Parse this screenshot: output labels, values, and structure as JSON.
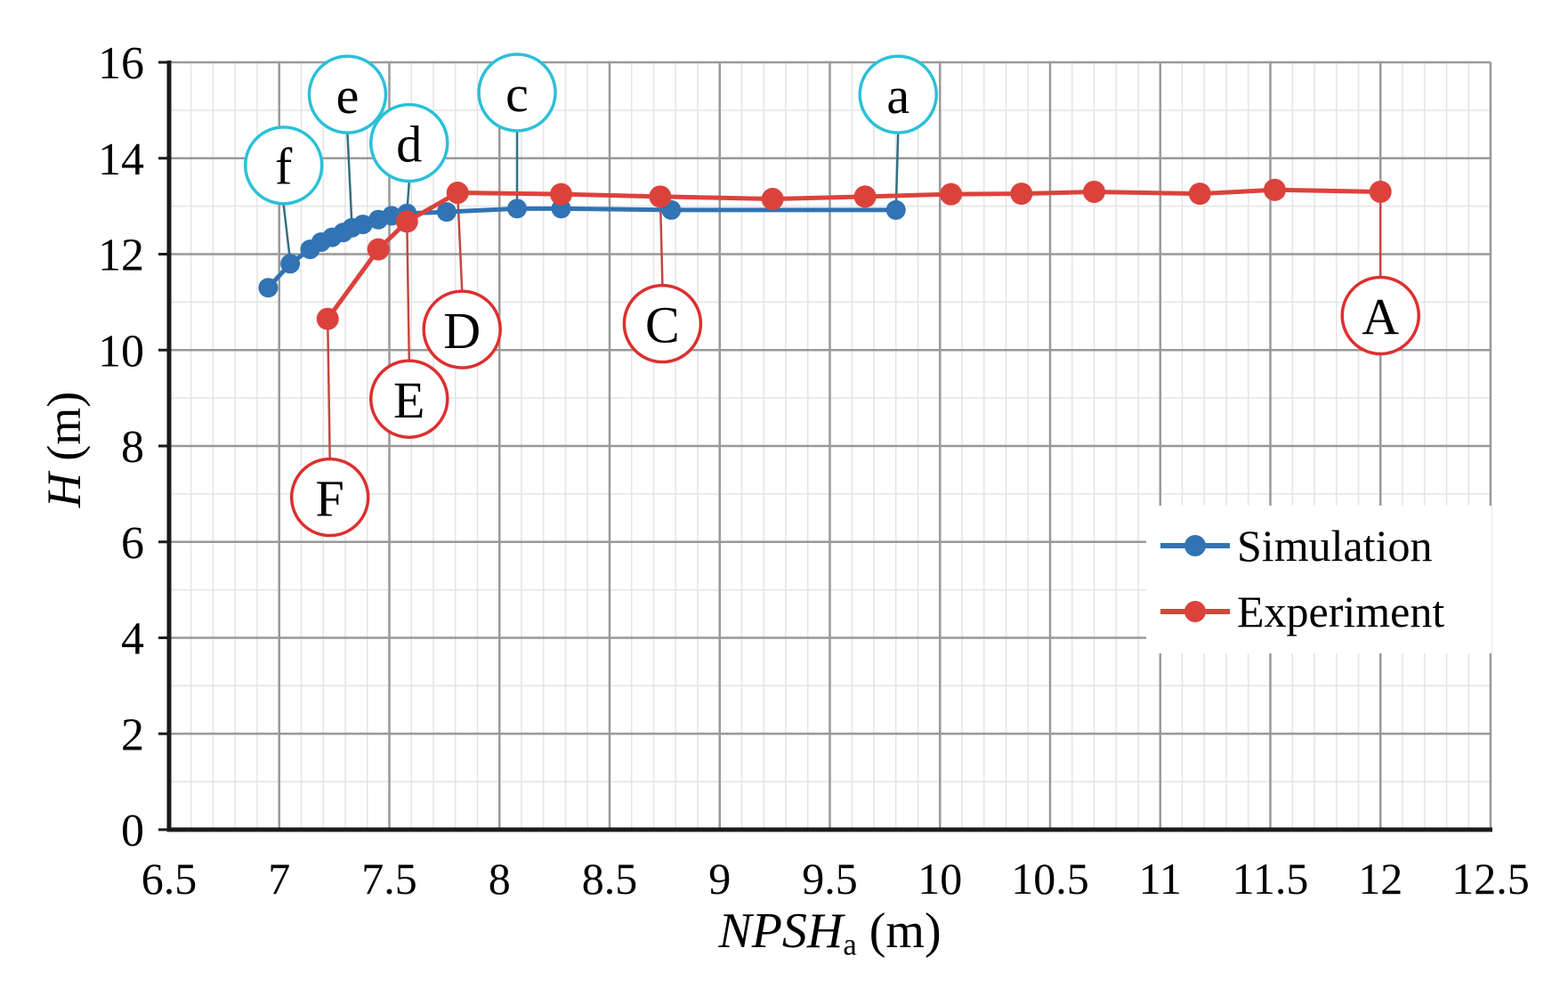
{
  "chart_data": {
    "type": "line",
    "title": "",
    "xlabel": {
      "main": "NPSH",
      "sub": "a",
      "unit": " (m)"
    },
    "ylabel": {
      "main": "H",
      "unit": " (m)"
    },
    "xlim": [
      6.5,
      12.5
    ],
    "ylim": [
      0,
      16
    ],
    "xticks": [
      6.5,
      7,
      7.5,
      8,
      8.5,
      9,
      9.5,
      10,
      10.5,
      11,
      11.5,
      12,
      12.5
    ],
    "yticks": [
      0,
      2,
      4,
      6,
      8,
      10,
      12,
      14,
      16
    ],
    "x_minor_step": 0.1,
    "y_minor_step": 1,
    "grid": {
      "major_color": "#999999",
      "minor_color": "#e4e4e4",
      "axis_color": "#1a1a1a"
    },
    "legend_position": "right-middle",
    "series": [
      {
        "name": "Simulation",
        "color": "#3173b3",
        "marker": "circle",
        "points": [
          [
            6.95,
            11.3
          ],
          [
            7.05,
            11.8
          ],
          [
            7.14,
            12.1
          ],
          [
            7.19,
            12.25
          ],
          [
            7.24,
            12.35
          ],
          [
            7.29,
            12.45
          ],
          [
            7.33,
            12.55
          ],
          [
            7.38,
            12.62
          ],
          [
            7.45,
            12.72
          ],
          [
            7.51,
            12.8
          ],
          [
            7.58,
            12.85
          ],
          [
            7.76,
            12.88
          ],
          [
            8.08,
            12.95
          ],
          [
            8.28,
            12.95
          ],
          [
            8.78,
            12.92
          ],
          [
            9.8,
            12.92
          ]
        ]
      },
      {
        "name": "Experiment",
        "color": "#dc423c",
        "marker": "circle",
        "points": [
          [
            7.22,
            10.65
          ],
          [
            7.45,
            12.1
          ],
          [
            7.58,
            12.68
          ],
          [
            7.81,
            13.28
          ],
          [
            8.28,
            13.25
          ],
          [
            8.73,
            13.2
          ],
          [
            9.24,
            13.15
          ],
          [
            9.66,
            13.2
          ],
          [
            10.05,
            13.25
          ],
          [
            10.37,
            13.26
          ],
          [
            10.7,
            13.3
          ],
          [
            11.18,
            13.26
          ],
          [
            11.52,
            13.34
          ],
          [
            12.0,
            13.3
          ]
        ]
      }
    ],
    "annotations": [
      {
        "label": "f",
        "series": "Simulation",
        "circle_color": "#2bc0d8",
        "leader_color": "#356f80",
        "cx": 7.02,
        "cy": 13.85,
        "tx": 7.05,
        "ty": 11.85
      },
      {
        "label": "e",
        "series": "Simulation",
        "circle_color": "#2bc0d8",
        "leader_color": "#356f80",
        "cx": 7.31,
        "cy": 15.33,
        "tx": 7.33,
        "ty": 12.6
      },
      {
        "label": "d",
        "series": "Simulation",
        "circle_color": "#2bc0d8",
        "leader_color": "#356f80",
        "cx": 7.59,
        "cy": 14.32,
        "tx": 7.58,
        "ty": 12.87
      },
      {
        "label": "c",
        "series": "Simulation",
        "circle_color": "#2bc0d8",
        "leader_color": "#356f80",
        "cx": 8.08,
        "cy": 15.37,
        "tx": 8.08,
        "ty": 12.95
      },
      {
        "label": "a",
        "series": "Simulation",
        "circle_color": "#2bc0d8",
        "leader_color": "#356f80",
        "cx": 9.81,
        "cy": 15.33,
        "tx": 9.8,
        "ty": 12.92
      },
      {
        "label": "F",
        "series": "Experiment",
        "circle_color": "#dd2f2f",
        "leader_color": "#c24842",
        "cx": 7.23,
        "cy": 6.93,
        "tx": 7.22,
        "ty": 10.65
      },
      {
        "label": "E",
        "series": "Experiment",
        "circle_color": "#dd2f2f",
        "leader_color": "#c24842",
        "cx": 7.59,
        "cy": 8.98,
        "tx": 7.58,
        "ty": 12.68
      },
      {
        "label": "D",
        "series": "Experiment",
        "circle_color": "#dd2f2f",
        "leader_color": "#c24842",
        "cx": 7.83,
        "cy": 10.43,
        "tx": 7.81,
        "ty": 13.28
      },
      {
        "label": "C",
        "series": "Experiment",
        "circle_color": "#dd2f2f",
        "leader_color": "#c24842",
        "cx": 8.74,
        "cy": 10.55,
        "tx": 8.73,
        "ty": 13.2
      },
      {
        "label": "A",
        "series": "Experiment",
        "circle_color": "#dd2f2f",
        "leader_color": "#c24842",
        "cx": 12.0,
        "cy": 10.72,
        "tx": 12.0,
        "ty": 13.3
      }
    ]
  }
}
